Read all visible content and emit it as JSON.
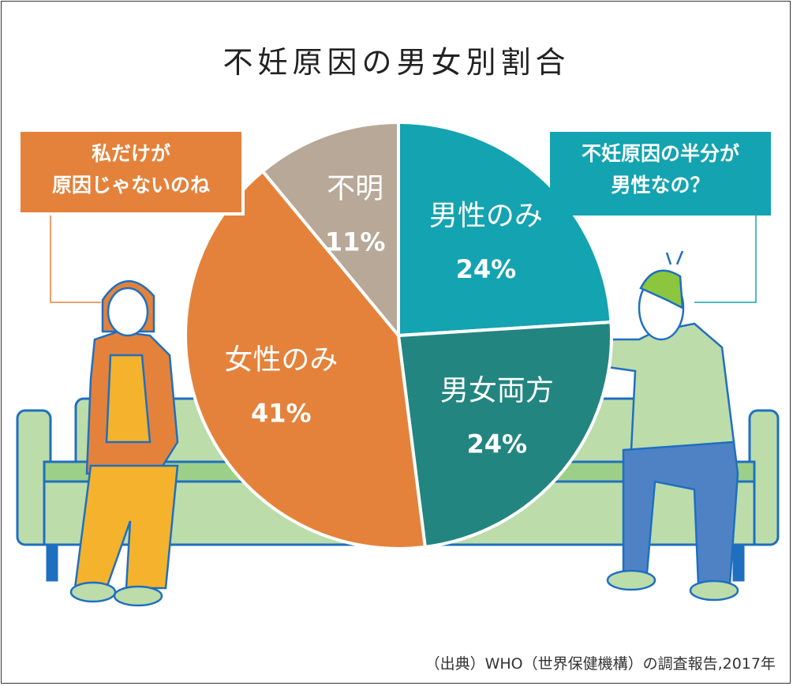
{
  "title": "不妊原因の男女別割合",
  "bubbles": {
    "left": [
      "私だけが",
      "原因じゃないのね"
    ],
    "right": [
      "不妊原因の半分が",
      "男性なの？"
    ]
  },
  "source": "（出典）WHO（世界保健機構）の調査報告,2017年",
  "colors": {
    "male_only": "#14a3b0",
    "both": "#238580",
    "female_only": "#e4823b",
    "unknown": "#b8a898",
    "sofa": "#bcdcaa",
    "outline": "#1f6fc0"
  },
  "chart_data": {
    "type": "pie",
    "title": "不妊原因の男女別割合",
    "slices": [
      {
        "label": "男性のみ",
        "value": 24,
        "display": "24%",
        "color": "#14a3b0"
      },
      {
        "label": "男女両方",
        "value": 24,
        "display": "24%",
        "color": "#238580"
      },
      {
        "label": "女性のみ",
        "value": 41,
        "display": "41%",
        "color": "#e4823b"
      },
      {
        "label": "不明",
        "value": 11,
        "display": "11%",
        "color": "#b8a898"
      }
    ],
    "start": "12 o'clock",
    "direction": "clockwise"
  }
}
